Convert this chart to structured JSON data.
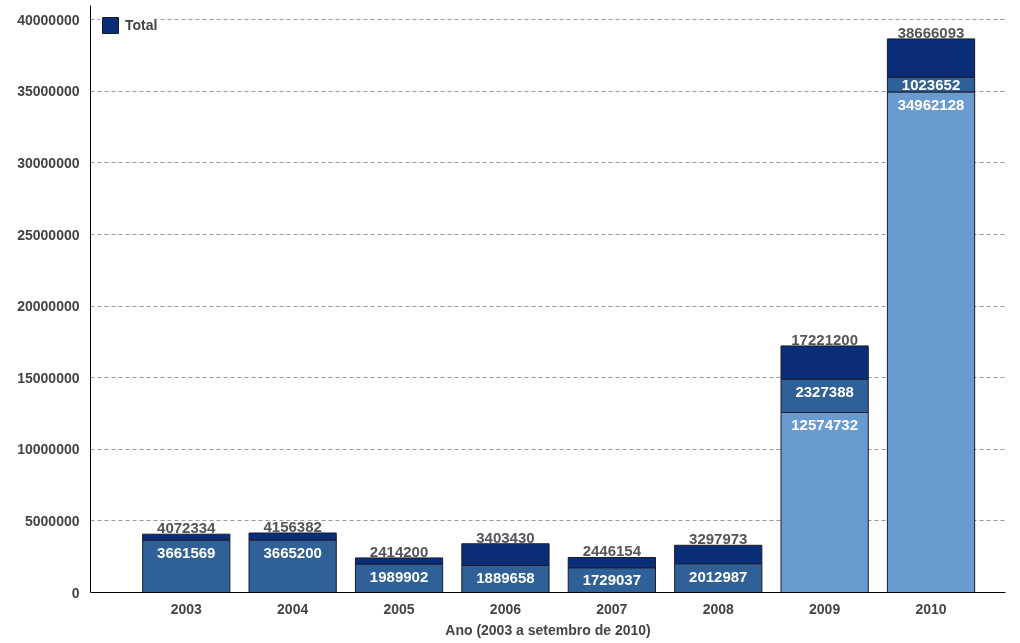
{
  "chart_data": {
    "type": "bar",
    "stacked": true,
    "xlabel": "Ano (2003 a setembro de 2010)",
    "categories": [
      "2003",
      "2004",
      "2005",
      "2006",
      "2007",
      "2008",
      "2009",
      "2010"
    ],
    "series": [
      {
        "color": "#6a9bd0",
        "values": [
          null,
          null,
          null,
          null,
          null,
          null,
          12574732,
          34962128
        ],
        "value_labels": [
          null,
          null,
          null,
          null,
          null,
          null,
          "12574732",
          "34962128"
        ]
      },
      {
        "color": "#2f6198",
        "values": [
          3661569,
          3665200,
          1989902,
          1889658,
          1729037,
          2012987,
          2327388,
          1023652
        ],
        "value_labels": [
          "3661569",
          "3665200",
          "1989902",
          "1889658",
          "1729037",
          "2012987",
          "2327388",
          "1023652"
        ]
      },
      {
        "name": "Total",
        "color": "#0a2d78",
        "values": [
          410765,
          491182,
          424298,
          1513772,
          717117,
          1284986,
          2319080,
          2680313
        ]
      }
    ],
    "totals": [
      "4072334",
      "4156382",
      "2414200",
      "3403430",
      "2446154",
      "3297973",
      "17221200",
      "38666093"
    ],
    "ylim": [
      0,
      41000000
    ],
    "yticks": [
      0,
      5000000,
      10000000,
      15000000,
      20000000,
      25000000,
      30000000,
      35000000,
      40000000
    ],
    "grid": "y",
    "legend": "top left"
  }
}
